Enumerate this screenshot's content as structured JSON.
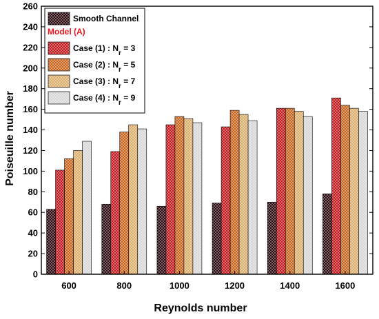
{
  "chart_data": {
    "type": "bar",
    "title": "",
    "xlabel": "Reynolds number",
    "ylabel": "Poiseuille number",
    "ylim": [
      0,
      260
    ],
    "yticks": [
      0,
      20,
      40,
      60,
      80,
      100,
      120,
      140,
      160,
      180,
      200,
      220,
      240,
      260
    ],
    "categories": [
      "600",
      "800",
      "1000",
      "1200",
      "1400",
      "1600"
    ],
    "legend_position": "top-left",
    "legend_group_title": "Model (A)",
    "series": [
      {
        "name": "Smooth Channel",
        "values": [
          63,
          68,
          66,
          69,
          70,
          78
        ],
        "color": "#2a0a0e"
      },
      {
        "name": "Case (1) : N",
        "subscript": "r",
        "suffix": " = 3",
        "values": [
          101,
          119,
          145,
          143,
          161,
          171
        ],
        "color": "#c11a1e"
      },
      {
        "name": "Case (2) : N",
        "subscript": "r",
        "suffix": " = 5",
        "values": [
          112,
          138,
          153,
          159,
          161,
          164
        ],
        "color": "#c8661e"
      },
      {
        "name": "Case (3) : N",
        "subscript": "r",
        "suffix": " = 7",
        "values": [
          120,
          145,
          151,
          155,
          158,
          161
        ],
        "color": "#dcae6e"
      },
      {
        "name": "Case (4) : N",
        "subscript": "r",
        "suffix": " = 9",
        "values": [
          129,
          141,
          147,
          149,
          153,
          158
        ],
        "color": "#d6d6d6"
      }
    ]
  }
}
